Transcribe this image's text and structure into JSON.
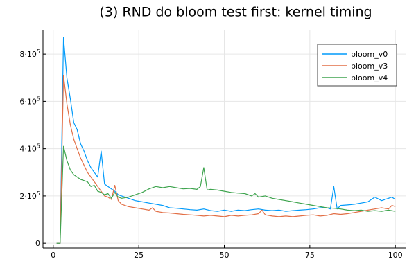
{
  "chart_data": {
    "type": "line",
    "title": "(3) RND do bloom test first: kernel timing",
    "xlabel": "",
    "ylabel": "",
    "xlim": [
      -3,
      103
    ],
    "ylim": [
      -20000,
      900000
    ],
    "x_ticks": [
      0,
      25,
      50,
      75,
      100
    ],
    "x_tick_labels": [
      "0",
      "25",
      "50",
      "75",
      "100"
    ],
    "y_ticks": [
      0,
      200000,
      400000,
      600000,
      800000
    ],
    "y_tick_labels": [
      {
        "base": "0",
        "exp": ""
      },
      {
        "base": "2·10",
        "exp": "5"
      },
      {
        "base": "4·10",
        "exp": "5"
      },
      {
        "base": "6·10",
        "exp": "5"
      },
      {
        "base": "8·10",
        "exp": "5"
      }
    ],
    "grid": true,
    "legend_position": "top-right",
    "series": [
      {
        "name": "bloom_v0",
        "color": "#009AFA",
        "points": [
          [
            1,
            0
          ],
          [
            2,
            0
          ],
          [
            3,
            870000
          ],
          [
            4,
            700000
          ],
          [
            5,
            610000
          ],
          [
            6,
            510000
          ],
          [
            7,
            480000
          ],
          [
            8,
            420000
          ],
          [
            9,
            390000
          ],
          [
            10,
            350000
          ],
          [
            11,
            320000
          ],
          [
            12,
            300000
          ],
          [
            13,
            280000
          ],
          [
            14,
            390000
          ],
          [
            15,
            250000
          ],
          [
            16,
            240000
          ],
          [
            17,
            230000
          ],
          [
            18,
            220000
          ],
          [
            19,
            205000
          ],
          [
            20,
            200000
          ],
          [
            22,
            190000
          ],
          [
            24,
            180000
          ],
          [
            26,
            175000
          ],
          [
            28,
            170000
          ],
          [
            30,
            165000
          ],
          [
            32,
            160000
          ],
          [
            34,
            150000
          ],
          [
            36,
            148000
          ],
          [
            38,
            145000
          ],
          [
            40,
            142000
          ],
          [
            42,
            140000
          ],
          [
            44,
            145000
          ],
          [
            46,
            138000
          ],
          [
            48,
            135000
          ],
          [
            50,
            140000
          ],
          [
            52,
            135000
          ],
          [
            54,
            140000
          ],
          [
            56,
            138000
          ],
          [
            58,
            142000
          ],
          [
            60,
            145000
          ],
          [
            62,
            140000
          ],
          [
            64,
            138000
          ],
          [
            66,
            140000
          ],
          [
            68,
            135000
          ],
          [
            70,
            138000
          ],
          [
            72,
            140000
          ],
          [
            74,
            142000
          ],
          [
            76,
            145000
          ],
          [
            78,
            150000
          ],
          [
            80,
            150000
          ],
          [
            81,
            145000
          ],
          [
            82,
            240000
          ],
          [
            83,
            145000
          ],
          [
            84,
            160000
          ],
          [
            86,
            162000
          ],
          [
            88,
            165000
          ],
          [
            90,
            170000
          ],
          [
            92,
            175000
          ],
          [
            94,
            195000
          ],
          [
            96,
            180000
          ],
          [
            98,
            190000
          ],
          [
            99,
            195000
          ],
          [
            100,
            185000
          ]
        ]
      },
      {
        "name": "bloom_v3",
        "color": "#E26F46",
        "points": [
          [
            1,
            0
          ],
          [
            2,
            0
          ],
          [
            3,
            710000
          ],
          [
            4,
            590000
          ],
          [
            5,
            500000
          ],
          [
            6,
            440000
          ],
          [
            7,
            400000
          ],
          [
            8,
            360000
          ],
          [
            9,
            330000
          ],
          [
            10,
            300000
          ],
          [
            11,
            280000
          ],
          [
            12,
            260000
          ],
          [
            13,
            240000
          ],
          [
            14,
            220000
          ],
          [
            15,
            200000
          ],
          [
            16,
            195000
          ],
          [
            17,
            185000
          ],
          [
            18,
            245000
          ],
          [
            19,
            180000
          ],
          [
            20,
            165000
          ],
          [
            22,
            155000
          ],
          [
            24,
            150000
          ],
          [
            26,
            145000
          ],
          [
            28,
            140000
          ],
          [
            29,
            150000
          ],
          [
            30,
            135000
          ],
          [
            32,
            130000
          ],
          [
            34,
            128000
          ],
          [
            36,
            125000
          ],
          [
            38,
            122000
          ],
          [
            40,
            120000
          ],
          [
            42,
            118000
          ],
          [
            44,
            115000
          ],
          [
            46,
            118000
          ],
          [
            48,
            115000
          ],
          [
            50,
            112000
          ],
          [
            52,
            118000
          ],
          [
            54,
            115000
          ],
          [
            56,
            118000
          ],
          [
            58,
            120000
          ],
          [
            60,
            125000
          ],
          [
            61,
            140000
          ],
          [
            62,
            120000
          ],
          [
            64,
            115000
          ],
          [
            66,
            112000
          ],
          [
            68,
            115000
          ],
          [
            70,
            112000
          ],
          [
            72,
            115000
          ],
          [
            74,
            118000
          ],
          [
            76,
            120000
          ],
          [
            78,
            115000
          ],
          [
            80,
            118000
          ],
          [
            82,
            125000
          ],
          [
            84,
            122000
          ],
          [
            86,
            125000
          ],
          [
            88,
            130000
          ],
          [
            90,
            135000
          ],
          [
            92,
            140000
          ],
          [
            94,
            145000
          ],
          [
            96,
            150000
          ],
          [
            98,
            145000
          ],
          [
            99,
            160000
          ],
          [
            100,
            155000
          ]
        ]
      },
      {
        "name": "bloom_v4",
        "color": "#3EA44E",
        "points": [
          [
            1,
            0
          ],
          [
            2,
            0
          ],
          [
            3,
            410000
          ],
          [
            4,
            350000
          ],
          [
            5,
            310000
          ],
          [
            6,
            290000
          ],
          [
            7,
            280000
          ],
          [
            8,
            270000
          ],
          [
            9,
            265000
          ],
          [
            10,
            260000
          ],
          [
            11,
            240000
          ],
          [
            12,
            245000
          ],
          [
            13,
            220000
          ],
          [
            14,
            215000
          ],
          [
            15,
            205000
          ],
          [
            16,
            210000
          ],
          [
            17,
            190000
          ],
          [
            18,
            215000
          ],
          [
            19,
            195000
          ],
          [
            20,
            190000
          ],
          [
            22,
            195000
          ],
          [
            24,
            205000
          ],
          [
            26,
            215000
          ],
          [
            28,
            230000
          ],
          [
            30,
            240000
          ],
          [
            32,
            235000
          ],
          [
            34,
            240000
          ],
          [
            36,
            235000
          ],
          [
            38,
            230000
          ],
          [
            40,
            232000
          ],
          [
            42,
            228000
          ],
          [
            43,
            240000
          ],
          [
            44,
            320000
          ],
          [
            45,
            225000
          ],
          [
            46,
            228000
          ],
          [
            48,
            225000
          ],
          [
            50,
            220000
          ],
          [
            52,
            215000
          ],
          [
            54,
            212000
          ],
          [
            56,
            210000
          ],
          [
            58,
            200000
          ],
          [
            59,
            210000
          ],
          [
            60,
            195000
          ],
          [
            62,
            200000
          ],
          [
            64,
            190000
          ],
          [
            66,
            185000
          ],
          [
            68,
            180000
          ],
          [
            70,
            175000
          ],
          [
            72,
            170000
          ],
          [
            74,
            165000
          ],
          [
            76,
            160000
          ],
          [
            78,
            155000
          ],
          [
            80,
            150000
          ],
          [
            82,
            148000
          ],
          [
            84,
            145000
          ],
          [
            86,
            140000
          ],
          [
            88,
            138000
          ],
          [
            90,
            140000
          ],
          [
            92,
            135000
          ],
          [
            94,
            138000
          ],
          [
            96,
            135000
          ],
          [
            98,
            140000
          ],
          [
            100,
            135000
          ]
        ]
      }
    ]
  }
}
